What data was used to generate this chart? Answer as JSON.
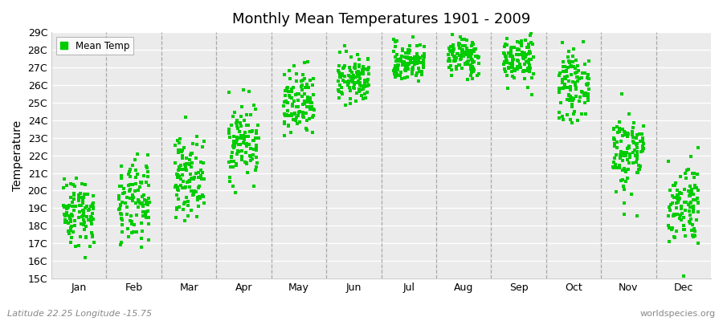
{
  "title": "Monthly Mean Temperatures 1901 - 2009",
  "ylabel": "Temperature",
  "xlabel": "",
  "ylim": [
    15,
    29
  ],
  "ytick_labels": [
    "15C",
    "16C",
    "17C",
    "18C",
    "19C",
    "20C",
    "21C",
    "22C",
    "23C",
    "24C",
    "25C",
    "26C",
    "27C",
    "28C",
    "29C"
  ],
  "ytick_values": [
    15,
    16,
    17,
    18,
    19,
    20,
    21,
    22,
    23,
    24,
    25,
    26,
    27,
    28,
    29
  ],
  "months": [
    "Jan",
    "Feb",
    "Mar",
    "Apr",
    "May",
    "Jun",
    "Jul",
    "Aug",
    "Sep",
    "Oct",
    "Nov",
    "Dec"
  ],
  "marker_color": "#00CC00",
  "marker": "s",
  "marker_size": 2.5,
  "legend_label": "Mean Temp",
  "background_color": "#FFFFFF",
  "plot_bg_color": "#EBEBEB",
  "grid_color": "#FFFFFF",
  "dashed_line_color": "#999999",
  "subtitle": "Latitude 22.25 Longitude -15.75",
  "watermark": "worldspecies.org",
  "monthly_mean": [
    18.8,
    19.2,
    20.8,
    22.8,
    24.8,
    26.3,
    27.3,
    27.6,
    27.5,
    26.0,
    22.2,
    19.3
  ],
  "monthly_std": [
    1.0,
    1.2,
    1.1,
    1.1,
    1.0,
    0.65,
    0.55,
    0.55,
    0.7,
    0.9,
    1.2,
    1.2
  ],
  "n_years": 109
}
